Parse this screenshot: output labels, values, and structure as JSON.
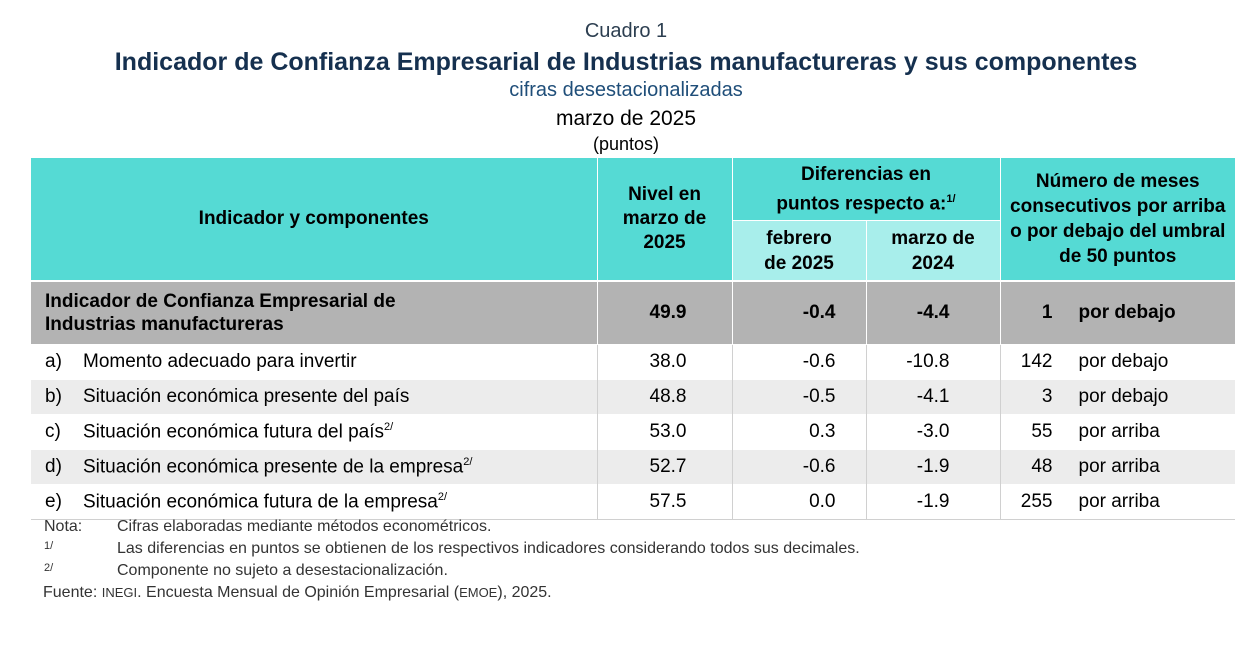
{
  "titles": {
    "cuadro": "Cuadro 1",
    "main": "Indicador de Confianza Empresarial de Industrias manufactureras y sus componentes",
    "sub": "cifras desestacionalizadas",
    "date": "marzo de 2025",
    "unit": "(puntos)"
  },
  "header": {
    "indicador": "Indicador y componentes",
    "nivel": "Nivel en marzo de 2025",
    "diferencias": "Diferencias en puntos respecto a:",
    "diferencias_note": "1/",
    "febrero": "febrero de 2025",
    "marzo": "marzo de 2024",
    "meses": "Número de meses consecutivos por arriba o por debajo del umbral de 50 puntos"
  },
  "total": {
    "name": "Indicador de Confianza Empresarial de Industrias manufactureras",
    "nivel": "49.9",
    "feb": "-0.4",
    "mar": "-4.4",
    "count": "1",
    "dir": "por debajo"
  },
  "rows": [
    {
      "letter": "a)",
      "name": "Momento adecuado para invertir",
      "note": "",
      "nivel": "38.0",
      "feb": "-0.6",
      "mar": "-10.8",
      "count": "142",
      "dir": "por debajo"
    },
    {
      "letter": "b)",
      "name": "Situación económica presente del país",
      "note": "",
      "nivel": "48.8",
      "feb": "-0.5",
      "mar": "-4.1",
      "count": "3",
      "dir": "por debajo"
    },
    {
      "letter": "c)",
      "name": "Situación económica futura del país",
      "note": "2/",
      "nivel": "53.0",
      "feb": "0.3",
      "mar": "-3.0",
      "count": "55",
      "dir": "por arriba"
    },
    {
      "letter": "d)",
      "name": "Situación económica presente de la empresa",
      "note": "2/",
      "nivel": "52.7",
      "feb": "-0.6",
      "mar": "-1.9",
      "count": "48",
      "dir": "por arriba"
    },
    {
      "letter": "e)",
      "name": "Situación económica futura de la empresa",
      "note": "2/",
      "nivel": "57.5",
      "feb": "0.0",
      "mar": "-1.9",
      "count": "255",
      "dir": "por arriba"
    }
  ],
  "notes": {
    "nota_label": "Nota:",
    "nota_text": "Cifras elaboradas mediante métodos econométricos.",
    "n1_label": "1/",
    "n1_text": "Las diferencias en puntos se obtienen de los respectivos indicadores considerando todos sus decimales.",
    "n2_label": "2/",
    "n2_text": "Componente no sujeto a desestacionalización.",
    "fuente_label": "Fuente:",
    "fuente_inegi": "INEGI",
    "fuente_text1": ". Encuesta Mensual de Opinión Empresarial (",
    "fuente_emoe": "EMOE",
    "fuente_text2": "), 2025."
  }
}
